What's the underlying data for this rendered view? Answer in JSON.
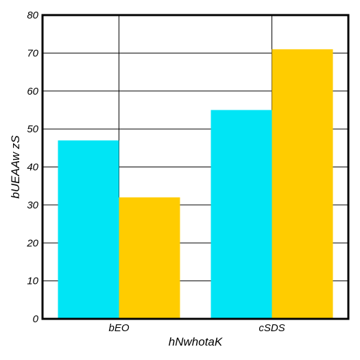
{
  "chart_data": {
    "type": "bar",
    "title": "",
    "xlabel": "hNwhotaK",
    "ylabel": "bUEAAw zS",
    "categories": [
      "bEO",
      "cSDS"
    ],
    "series": [
      {
        "values": [
          47,
          32
        ],
        "color": "#00e5f5"
      },
      {
        "values": [
          55,
          71
        ],
        "color": "#ffcc00"
      }
    ],
    "ylim": [
      0,
      80
    ],
    "yticks": [
      0,
      10,
      20,
      30,
      40,
      50,
      60,
      70,
      80
    ],
    "grid": true,
    "legend": "none"
  }
}
